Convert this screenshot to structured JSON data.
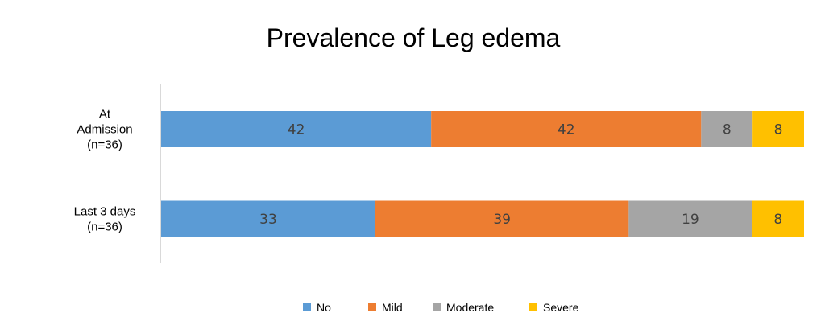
{
  "chart_data": {
    "type": "bar",
    "orientation": "horizontal",
    "stacked": "percent",
    "title": "Prevalence of Leg edema",
    "categories": [
      [
        "At",
        "Admission",
        "(n=36)"
      ],
      [
        "Last 3 days",
        "(n=36)"
      ]
    ],
    "series": [
      {
        "name": "No",
        "color": "#5b9bd5",
        "values": [
          42,
          33
        ]
      },
      {
        "name": "Mild",
        "color": "#ed7d31",
        "values": [
          42,
          39
        ]
      },
      {
        "name": "Moderate",
        "color": "#a5a5a5",
        "values": [
          8,
          19
        ]
      },
      {
        "name": "Severe",
        "color": "#ffc000",
        "values": [
          8,
          8
        ]
      }
    ],
    "xlabel": "",
    "ylabel": "",
    "grid": false,
    "legend": "bottom"
  }
}
